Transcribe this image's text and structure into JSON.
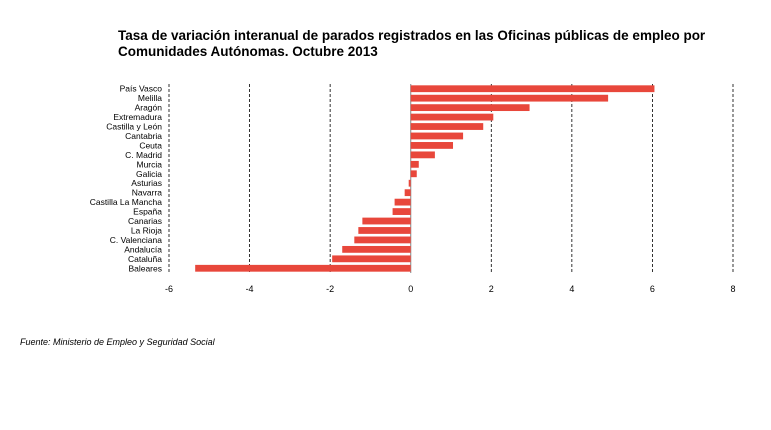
{
  "title_line1": "Tasa de variación interanual de parados registrados en las Oficinas públicas de empleo por",
  "title_line2": "Comunidades Autónomas.  Octubre 2013",
  "source": "Fuente: Ministerio de Empleo y Seguridad Social",
  "colors": {
    "bar": "#e8473b",
    "grid": "#000000",
    "zero_axis": "#999999"
  },
  "chart_data": {
    "type": "bar",
    "orientation": "horizontal",
    "title": "Tasa de variación interanual de parados registrados en las Oficinas públicas de empleo por Comunidades Autónomas.  Octubre 2013",
    "categories": [
      "País Vasco",
      "Melilla",
      "Aragón",
      "Extremadura",
      "Castilla y León",
      "Cantabria",
      "Ceuta",
      "C. Madrid",
      "Murcia",
      "Galicia",
      "Asturias",
      "Navarra",
      "Castilla La Mancha",
      "España",
      "Canarias",
      "La Rioja",
      "C. Valenciana",
      "Andalucía",
      "Cataluña",
      "Baleares"
    ],
    "values": [
      6.05,
      4.9,
      2.95,
      2.05,
      1.8,
      1.3,
      1.05,
      0.6,
      0.2,
      0.15,
      -0.05,
      -0.15,
      -0.4,
      -0.45,
      -1.2,
      -1.3,
      -1.4,
      -1.7,
      -1.95,
      -5.35
    ],
    "xlim": [
      -6,
      8
    ],
    "xticks": [
      "-6",
      "-4",
      "-2",
      "0",
      "2",
      "4",
      "6",
      "8"
    ],
    "grid": "vertical dashed",
    "legend": "none"
  }
}
